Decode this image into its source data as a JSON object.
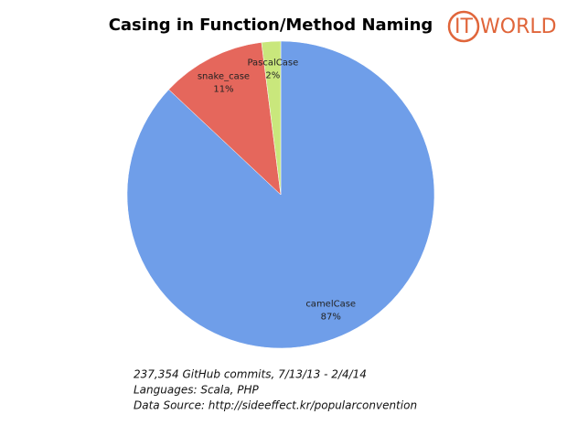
{
  "chart_data": {
    "type": "pie",
    "title": "Casing in Function/Method Naming",
    "categories": [
      "camelCase",
      "snake_case",
      "PascalCase"
    ],
    "values": [
      87,
      11,
      2
    ],
    "value_labels": [
      "87%",
      "11%",
      "2%"
    ],
    "colors": [
      "#6f9ee9",
      "#e5675c",
      "#c9e77c"
    ],
    "notes": [
      "237,354 GitHub commits, 7/13/13 - 2/4/14",
      "Languages: Scala, PHP",
      "Data Source: http://sideeffect.kr/popularconvention"
    ]
  },
  "logo": {
    "circle": "IT",
    "text": "WORLD"
  }
}
